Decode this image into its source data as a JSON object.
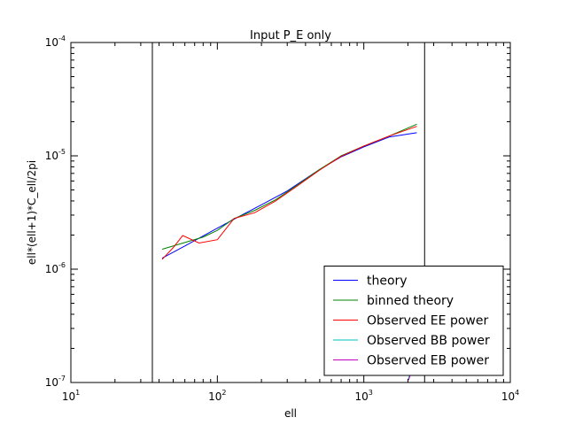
{
  "chart_data": {
    "type": "line",
    "title": "Input P_E only",
    "xlabel": "ell",
    "ylabel": "ell*(ell+1)*C_ell/2pi",
    "xscale": "log",
    "yscale": "log",
    "xlim": [
      10,
      10000
    ],
    "ylim": [
      1e-07,
      0.0001
    ],
    "x_ticks": [
      {
        "value": 10,
        "base": "10",
        "exp": "1"
      },
      {
        "value": 100,
        "base": "10",
        "exp": "2"
      },
      {
        "value": 1000,
        "base": "10",
        "exp": "3"
      },
      {
        "value": 10000,
        "base": "10",
        "exp": "4"
      }
    ],
    "y_ticks": [
      {
        "value": 1e-07,
        "base": "10",
        "exp": "-7"
      },
      {
        "value": 1e-06,
        "base": "10",
        "exp": "-6"
      },
      {
        "value": 1e-05,
        "base": "10",
        "exp": "-5"
      },
      {
        "value": 0.0001,
        "base": "10",
        "exp": "-4"
      }
    ],
    "vertical_lines": [
      36,
      2600
    ],
    "grid": false,
    "legend_position": "lower-right",
    "series": [
      {
        "name": "theory",
        "color": "#0000ff",
        "points": [
          [
            42,
            1.25e-06
          ],
          [
            60,
            1.6e-06
          ],
          [
            100,
            2.3e-06
          ],
          [
            150,
            3.05e-06
          ],
          [
            200,
            3.7e-06
          ],
          [
            300,
            4.9e-06
          ],
          [
            500,
            7.6e-06
          ],
          [
            700,
            9.8e-06
          ],
          [
            1000,
            1.2e-05
          ],
          [
            1500,
            1.47e-05
          ],
          [
            2300,
            1.6e-05
          ]
        ]
      },
      {
        "name": "binned theory",
        "color": "#008000",
        "points": [
          [
            42,
            1.5e-06
          ],
          [
            60,
            1.72e-06
          ],
          [
            80,
            1.92e-06
          ],
          [
            100,
            2.2e-06
          ],
          [
            130,
            2.8e-06
          ],
          [
            180,
            3.3e-06
          ],
          [
            250,
            4.1e-06
          ],
          [
            350,
            5.5e-06
          ],
          [
            500,
            7.6e-06
          ],
          [
            700,
            1e-05
          ],
          [
            1000,
            1.22e-05
          ],
          [
            1500,
            1.5e-05
          ],
          [
            2300,
            1.9e-05
          ]
        ]
      },
      {
        "name": "Observed EE power",
        "color": "#ff0000",
        "points": [
          [
            42,
            1.22e-06
          ],
          [
            50,
            1.55e-06
          ],
          [
            58,
            1.98e-06
          ],
          [
            75,
            1.7e-06
          ],
          [
            100,
            1.82e-06
          ],
          [
            130,
            2.8e-06
          ],
          [
            180,
            3.15e-06
          ],
          [
            250,
            4e-06
          ],
          [
            350,
            5.4e-06
          ],
          [
            500,
            7.5e-06
          ],
          [
            700,
            9.9e-06
          ],
          [
            1000,
            1.22e-05
          ],
          [
            1500,
            1.5e-05
          ],
          [
            2300,
            1.82e-05
          ]
        ]
      },
      {
        "name": "Observed BB power",
        "color": "#00bfbf",
        "points": [
          [
            2000,
            1.05e-07
          ],
          [
            2100,
            1.25e-07
          ],
          [
            2200,
            1.55e-07
          ],
          [
            2300,
            1.9e-07
          ]
        ]
      },
      {
        "name": "Observed EB power",
        "color": "#bf00bf",
        "points": [
          [
            2020,
            1.05e-07
          ],
          [
            2130,
            1.3e-07
          ],
          [
            2250,
            1.6e-07
          ],
          [
            2330,
            1.85e-07
          ]
        ]
      }
    ]
  }
}
